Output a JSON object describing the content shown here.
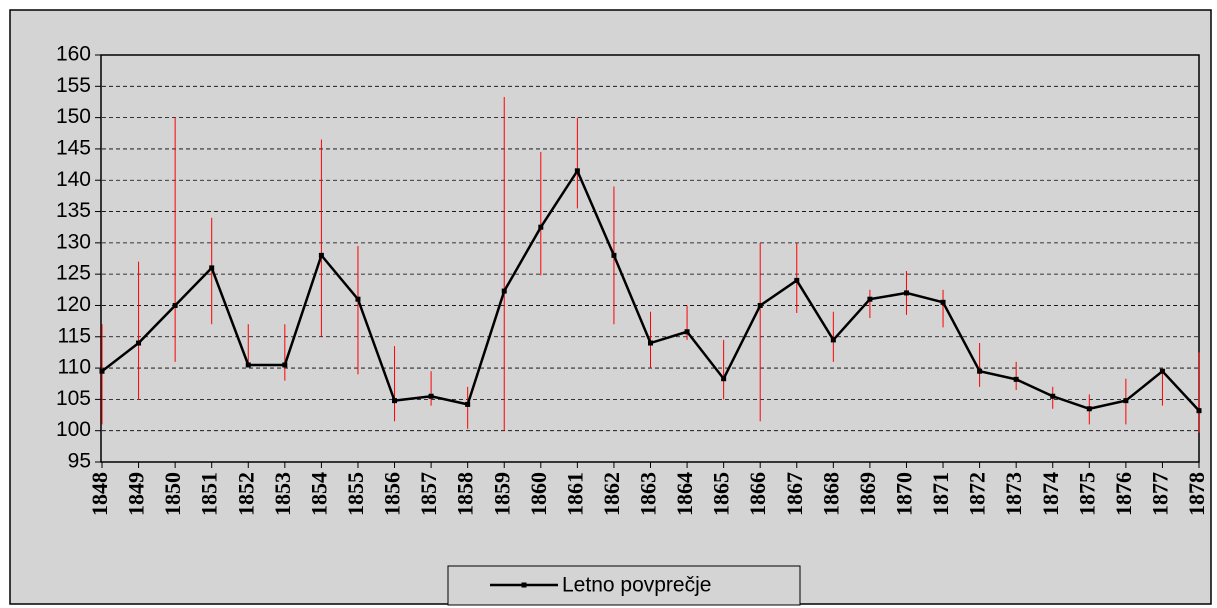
{
  "chart_data": {
    "type": "line",
    "categories": [
      "1848",
      "1849",
      "1850",
      "1851",
      "1852",
      "1853",
      "1854",
      "1855",
      "1856",
      "1857",
      "1858",
      "1859",
      "1860",
      "1861",
      "1862",
      "1863",
      "1864",
      "1865",
      "1866",
      "1867",
      "1868",
      "1869",
      "1870",
      "1871",
      "1872",
      "1873",
      "1874",
      "1875",
      "1876",
      "1877",
      "1878"
    ],
    "series": [
      {
        "name": "Letno povprečje",
        "color": "#000000",
        "values": [
          109.5,
          114,
          120,
          126,
          110.5,
          110.5,
          128,
          121,
          104.8,
          105.5,
          104.2,
          122.3,
          132.5,
          141.5,
          128,
          114,
          115.8,
          108.3,
          120,
          124,
          114.5,
          121,
          122,
          120.5,
          109.5,
          108.2,
          105.5,
          103.5,
          104.8,
          109.5,
          103.2
        ],
        "high": [
          117,
          127,
          150,
          134,
          117,
          117,
          146.5,
          129.5,
          113.5,
          109.5,
          107,
          153.3,
          144.5,
          150,
          139,
          119,
          120,
          114.5,
          130,
          130,
          119,
          122.5,
          125.5,
          122.5,
          114,
          111,
          107,
          105.8,
          108.3,
          110,
          112.5
        ],
        "low": [
          101,
          105,
          111,
          117,
          110.5,
          108,
          115,
          109,
          101.5,
          104,
          100.3,
          100,
          124.8,
          135.5,
          117,
          110,
          114.5,
          105,
          101.5,
          118.8,
          111,
          118,
          118.5,
          116.5,
          107,
          106.5,
          103.5,
          101,
          101,
          104,
          99.7
        ],
        "error_color": "#ff0000"
      }
    ],
    "ylim": [
      95,
      160
    ],
    "yticks": [
      95,
      100,
      105,
      110,
      115,
      120,
      125,
      130,
      135,
      140,
      145,
      150,
      155,
      160
    ],
    "grid": true
  }
}
